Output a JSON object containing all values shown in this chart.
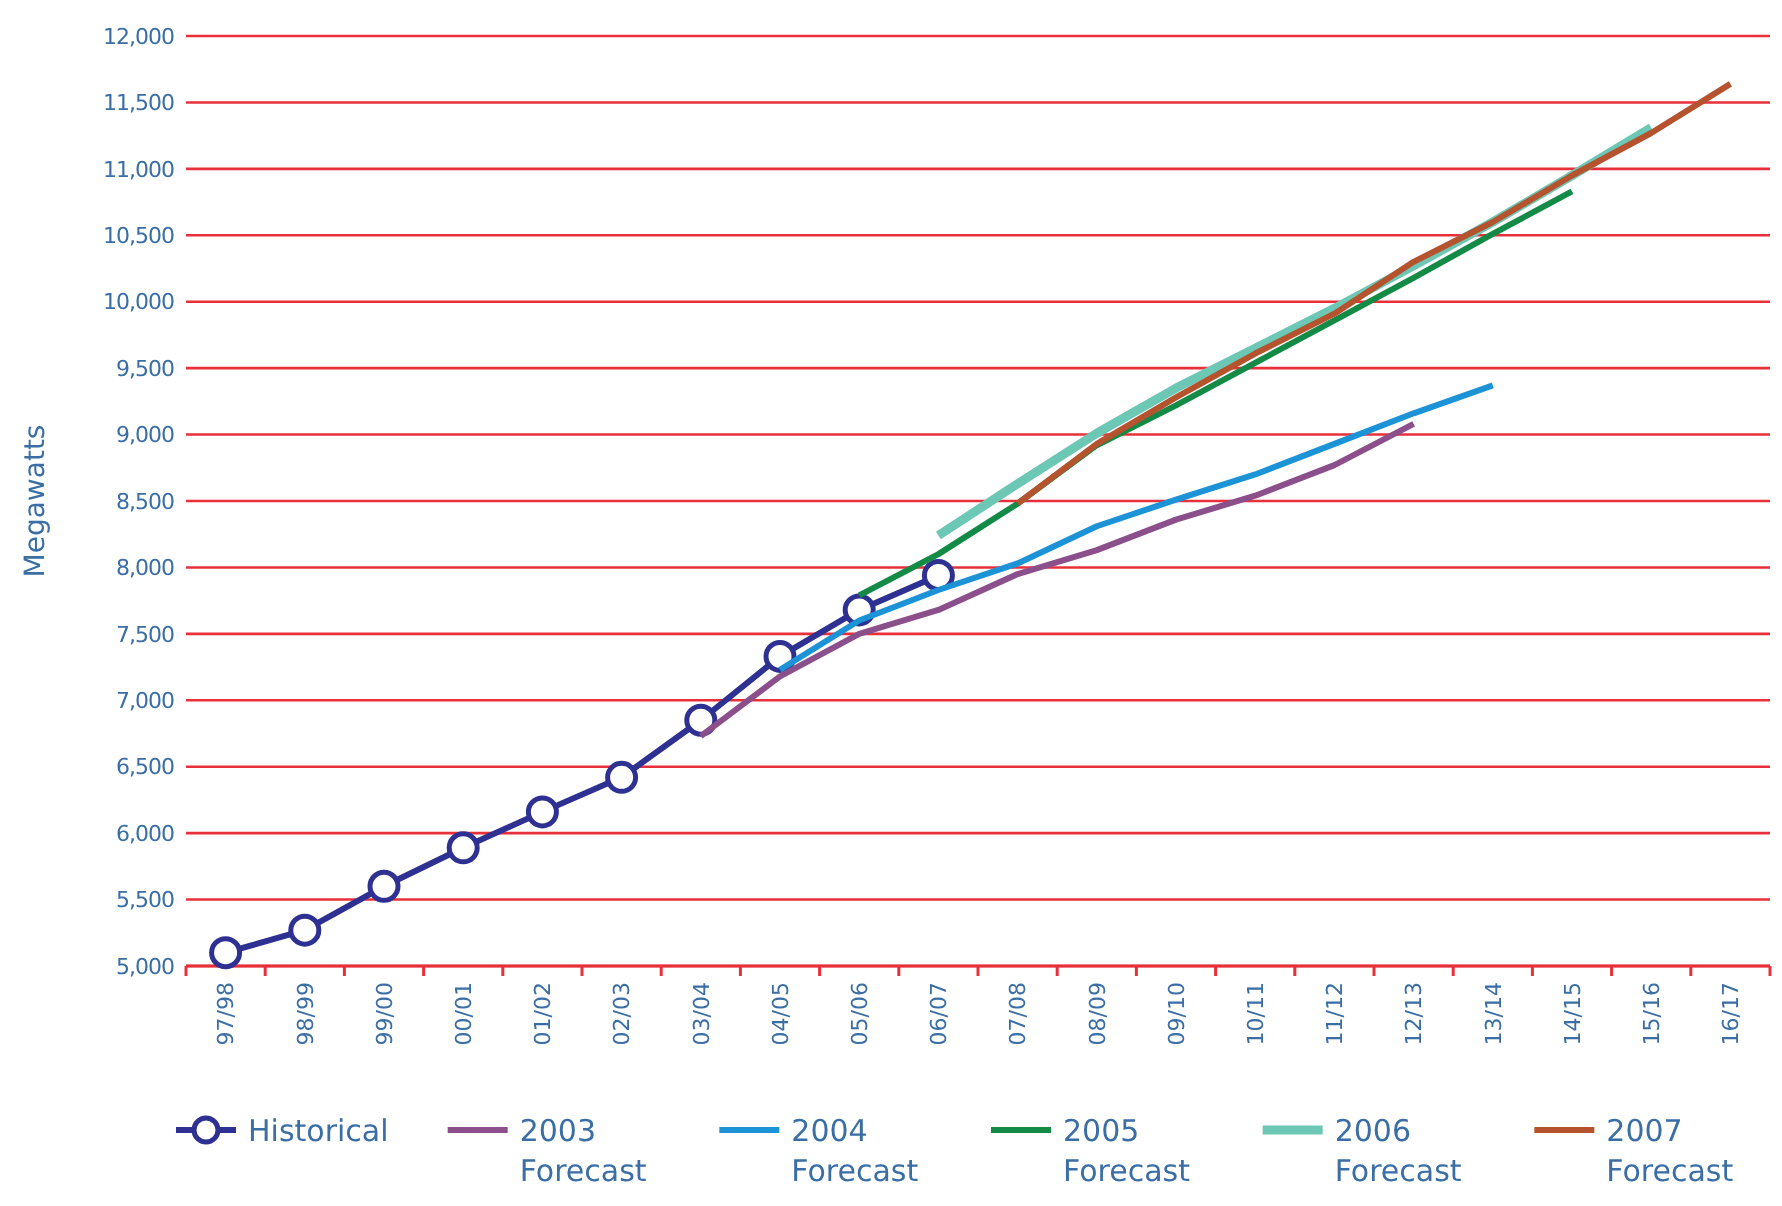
{
  "chart_data": {
    "type": "line",
    "ylabel": "Megawatts",
    "categories": [
      "97/98",
      "98/99",
      "99/00",
      "00/01",
      "01/02",
      "02/03",
      "03/04",
      "04/05",
      "05/06",
      "06/07",
      "07/08",
      "08/09",
      "09/10",
      "10/11",
      "11/12",
      "12/13",
      "13/14",
      "14/15",
      "15/16",
      "16/17"
    ],
    "series": [
      {
        "name": "Historical",
        "color": "#2e3192",
        "marker": "circle",
        "values": [
          5100,
          5270,
          5600,
          5890,
          6160,
          6420,
          6850,
          7330,
          7680,
          7940,
          null,
          null,
          null,
          null,
          null,
          null,
          null,
          null,
          null,
          null
        ]
      },
      {
        "name": "2003 Forecast",
        "color": "#8b4f8c",
        "values": [
          null,
          null,
          null,
          null,
          null,
          null,
          6730,
          7180,
          7500,
          7680,
          7950,
          8130,
          8360,
          8540,
          8770,
          9080,
          null,
          null,
          null,
          null
        ]
      },
      {
        "name": "2004 Forecast",
        "color": "#1b93d6",
        "values": [
          null,
          null,
          null,
          null,
          null,
          null,
          null,
          7230,
          7600,
          7830,
          8030,
          8310,
          8510,
          8700,
          8930,
          9160,
          9370,
          null,
          null,
          null
        ]
      },
      {
        "name": "2005 Forecast",
        "color": "#138a45",
        "values": [
          null,
          null,
          null,
          null,
          null,
          null,
          null,
          null,
          7790,
          8100,
          8480,
          8920,
          9220,
          9540,
          9860,
          10180,
          10510,
          10830,
          null,
          null
        ]
      },
      {
        "name": "2006 Forecast",
        "color": "#6dc7b5",
        "values": [
          null,
          null,
          null,
          null,
          null,
          null,
          null,
          null,
          null,
          8240,
          8630,
          9010,
          9350,
          9650,
          9950,
          10270,
          10600,
          10950,
          11310,
          null
        ]
      },
      {
        "name": "2007 Forecast",
        "color": "#b5532e",
        "values": [
          null,
          null,
          null,
          null,
          null,
          null,
          null,
          null,
          null,
          null,
          8480,
          8930,
          9280,
          9610,
          9910,
          10300,
          10600,
          10950,
          11270,
          11640
        ]
      }
    ],
    "ylim": [
      5000,
      12000
    ],
    "yticks": [
      {
        "value": 5000,
        "label": "5,000"
      },
      {
        "value": 5500,
        "label": "5,500"
      },
      {
        "value": 6000,
        "label": "6,000"
      },
      {
        "value": 6500,
        "label": "6,500"
      },
      {
        "value": 7000,
        "label": "7,000"
      },
      {
        "value": 7500,
        "label": "7,500"
      },
      {
        "value": 8000,
        "label": "8,000"
      },
      {
        "value": 8500,
        "label": "8,500"
      },
      {
        "value": 9000,
        "label": "9,000"
      },
      {
        "value": 9500,
        "label": "9,500"
      },
      {
        "value": 10000,
        "label": "10,000"
      },
      {
        "value": 10500,
        "label": "10,500"
      },
      {
        "value": 11000,
        "label": "11,000"
      },
      {
        "value": 11500,
        "label": "11,500"
      },
      {
        "value": 12000,
        "label": "12,000"
      }
    ],
    "grid": "y",
    "legend": "bottom",
    "line_style": "solid"
  }
}
